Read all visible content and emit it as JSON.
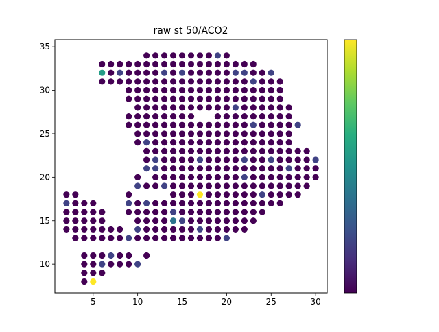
{
  "chart_data": {
    "type": "scatter",
    "title": "raw st 50/ACO2",
    "xlabel": "",
    "ylabel": "",
    "xlim": [
      0.7,
      31.3
    ],
    "ylim": [
      6.7,
      35.8
    ],
    "xticks": [
      5,
      10,
      15,
      20,
      25,
      30
    ],
    "yticks": [
      10,
      15,
      20,
      25,
      30,
      35
    ],
    "grid": false,
    "colormap": "viridis",
    "colorbar": {
      "position": "right",
      "vmin": 0,
      "vmax": 1,
      "ticks": []
    },
    "colors": {
      "low": "#440154",
      "mid_low": "#46327e",
      "mid": "#365c8d",
      "teal": "#1fa187",
      "high": "#fde725"
    },
    "default_value": 0.0,
    "rows": [
      {
        "y": 34,
        "x": [
          11,
          12,
          13,
          14,
          15,
          16,
          17,
          18,
          19,
          20
        ]
      },
      {
        "y": 33,
        "x": [
          6,
          7,
          8,
          9,
          10,
          11,
          12,
          13,
          14,
          15,
          16,
          17,
          18,
          19,
          20,
          21,
          22,
          23
        ]
      },
      {
        "y": 32,
        "x": [
          6,
          7,
          8,
          9,
          10,
          11,
          12,
          13,
          14,
          15,
          16,
          17,
          18,
          19,
          20,
          21,
          22,
          23,
          24,
          25
        ]
      },
      {
        "y": 31,
        "x": [
          6,
          7,
          8,
          9,
          10,
          11,
          12,
          13,
          14,
          15,
          16,
          17,
          18,
          19,
          20,
          21,
          22,
          23,
          24,
          25,
          26
        ]
      },
      {
        "y": 30,
        "x": [
          9,
          10,
          11,
          12,
          13,
          14,
          15,
          16,
          17,
          18,
          19,
          20,
          21,
          22,
          23,
          24,
          25,
          26
        ]
      },
      {
        "y": 29,
        "x": [
          9,
          10,
          11,
          12,
          13,
          14,
          15,
          16,
          17,
          18,
          19,
          20,
          21,
          22,
          23,
          24,
          25,
          26
        ]
      },
      {
        "y": 28,
        "x": [
          10,
          11,
          12,
          13,
          14,
          15,
          16,
          17,
          18,
          19,
          20,
          21,
          22,
          23,
          24,
          25,
          26,
          27
        ]
      },
      {
        "y": 27,
        "x": [
          9,
          10,
          11,
          12,
          13,
          14,
          15,
          16,
          19,
          20,
          21,
          22,
          23,
          24,
          25,
          26,
          27
        ]
      },
      {
        "y": 26,
        "x": [
          9,
          10,
          11,
          12,
          13,
          14,
          15,
          16,
          17,
          18,
          19,
          20,
          21,
          22,
          23,
          24,
          25,
          26,
          27,
          28
        ]
      },
      {
        "y": 25,
        "x": [
          10,
          11,
          12,
          13,
          14,
          15,
          16,
          17,
          18,
          19,
          20,
          21,
          22,
          23,
          24,
          25,
          26,
          27
        ]
      },
      {
        "y": 24,
        "x": [
          10,
          11,
          12,
          13,
          14,
          15,
          16,
          17,
          18,
          19,
          20,
          21,
          22,
          23,
          24,
          25,
          26,
          27
        ]
      },
      {
        "y": 23,
        "x": [
          11,
          12,
          13,
          14,
          15,
          16,
          17,
          18,
          19,
          20,
          21,
          22,
          23,
          24,
          25,
          26,
          27,
          28,
          29
        ]
      },
      {
        "y": 22,
        "x": [
          11,
          12,
          13,
          14,
          15,
          16,
          17,
          18,
          19,
          20,
          21,
          22,
          23,
          24,
          25,
          26,
          27,
          28,
          29,
          30
        ]
      },
      {
        "y": 21,
        "x": [
          11,
          12,
          13,
          14,
          15,
          16,
          17,
          18,
          19,
          20,
          21,
          22,
          23,
          24,
          25,
          26,
          27,
          28,
          29,
          30
        ]
      },
      {
        "y": 20,
        "x": [
          10,
          12,
          13,
          14,
          15,
          16,
          17,
          18,
          19,
          20,
          21,
          22,
          23,
          24,
          25,
          26,
          27,
          28,
          29,
          30
        ]
      },
      {
        "y": 19,
        "x": [
          10,
          11,
          12,
          13,
          14,
          15,
          16,
          17,
          18,
          19,
          20,
          21,
          22,
          23,
          24,
          25,
          26,
          27,
          28,
          29
        ]
      },
      {
        "y": 18,
        "x": [
          2,
          3,
          9,
          14,
          15,
          16,
          17,
          18,
          19,
          20,
          21,
          22,
          23,
          24,
          25,
          26,
          27,
          28
        ]
      },
      {
        "y": 17,
        "x": [
          2,
          3,
          4,
          5,
          9,
          10,
          11,
          12,
          13,
          14,
          15,
          16,
          17,
          18,
          19,
          20,
          21,
          22,
          23,
          24,
          25,
          26
        ]
      },
      {
        "y": 16,
        "x": [
          2,
          3,
          4,
          5,
          6,
          9,
          10,
          11,
          12,
          13,
          14,
          15,
          16,
          17,
          18,
          19,
          20,
          21,
          22,
          23,
          24
        ]
      },
      {
        "y": 15,
        "x": [
          2,
          3,
          4,
          5,
          6,
          10,
          11,
          12,
          13,
          14,
          15,
          16,
          17,
          18,
          19,
          20,
          21,
          22,
          23
        ]
      },
      {
        "y": 14,
        "x": [
          2,
          3,
          4,
          5,
          6,
          7,
          8,
          10,
          11,
          12,
          13,
          14,
          15,
          16,
          17,
          18,
          19,
          20,
          21,
          22
        ]
      },
      {
        "y": 13,
        "x": [
          3,
          4,
          5,
          6,
          7,
          8,
          9,
          10,
          11,
          12,
          13,
          14,
          15,
          16,
          17,
          18,
          19,
          20
        ]
      },
      {
        "y": 11,
        "x": [
          4,
          5,
          6,
          7,
          8,
          9,
          11
        ]
      },
      {
        "y": 10,
        "x": [
          4,
          5,
          6,
          7,
          8,
          9,
          10
        ]
      },
      {
        "y": 9,
        "x": [
          4,
          5,
          6
        ]
      },
      {
        "y": 8,
        "x": [
          4,
          5
        ]
      }
    ],
    "highlights": [
      {
        "x": 19,
        "y": 34,
        "value": 0.2
      },
      {
        "x": 6,
        "y": 32,
        "value": 0.55
      },
      {
        "x": 8,
        "y": 32,
        "value": 0.2
      },
      {
        "x": 13,
        "y": 32,
        "value": 0.2
      },
      {
        "x": 15,
        "y": 32,
        "value": 0.2
      },
      {
        "x": 21,
        "y": 32,
        "value": 0.2
      },
      {
        "x": 22,
        "y": 32,
        "value": 0.2
      },
      {
        "x": 25,
        "y": 32,
        "value": 0.2
      },
      {
        "x": 23,
        "y": 31,
        "value": 0.2
      },
      {
        "x": 21,
        "y": 28,
        "value": 0.2
      },
      {
        "x": 23,
        "y": 26,
        "value": 0.2
      },
      {
        "x": 28,
        "y": 26,
        "value": 0.2
      },
      {
        "x": 11,
        "y": 24,
        "value": 0.2
      },
      {
        "x": 12,
        "y": 22,
        "value": 0.2
      },
      {
        "x": 17,
        "y": 22,
        "value": 0.2
      },
      {
        "x": 22,
        "y": 22,
        "value": 0.2
      },
      {
        "x": 25,
        "y": 22,
        "value": 0.2
      },
      {
        "x": 30,
        "y": 22,
        "value": 0.2
      },
      {
        "x": 11,
        "y": 21,
        "value": 0.2
      },
      {
        "x": 12,
        "y": 21,
        "value": 0.2
      },
      {
        "x": 27,
        "y": 21,
        "value": 0.2
      },
      {
        "x": 22,
        "y": 20,
        "value": 0.2
      },
      {
        "x": 10,
        "y": 19,
        "value": 0.2
      },
      {
        "x": 13,
        "y": 19,
        "value": 0.2
      },
      {
        "x": 17,
        "y": 18,
        "value": 1.0
      },
      {
        "x": 24,
        "y": 18,
        "value": 0.2
      },
      {
        "x": 2,
        "y": 17,
        "value": 0.2
      },
      {
        "x": 9,
        "y": 17,
        "value": 0.2
      },
      {
        "x": 11,
        "y": 17,
        "value": 0.2
      },
      {
        "x": 14,
        "y": 16,
        "value": 0.2
      },
      {
        "x": 14,
        "y": 15,
        "value": 0.38
      },
      {
        "x": 15,
        "y": 15,
        "value": 0.2
      },
      {
        "x": 10,
        "y": 14,
        "value": 0.2
      },
      {
        "x": 17,
        "y": 14,
        "value": 0.2
      },
      {
        "x": 9,
        "y": 13,
        "value": 0.2
      },
      {
        "x": 20,
        "y": 13,
        "value": 0.2
      },
      {
        "x": 7,
        "y": 11,
        "value": 0.2
      },
      {
        "x": 6,
        "y": 10,
        "value": 0.2
      },
      {
        "x": 10,
        "y": 10,
        "value": 0.2
      },
      {
        "x": 5,
        "y": 8,
        "value": 1.0
      }
    ]
  }
}
